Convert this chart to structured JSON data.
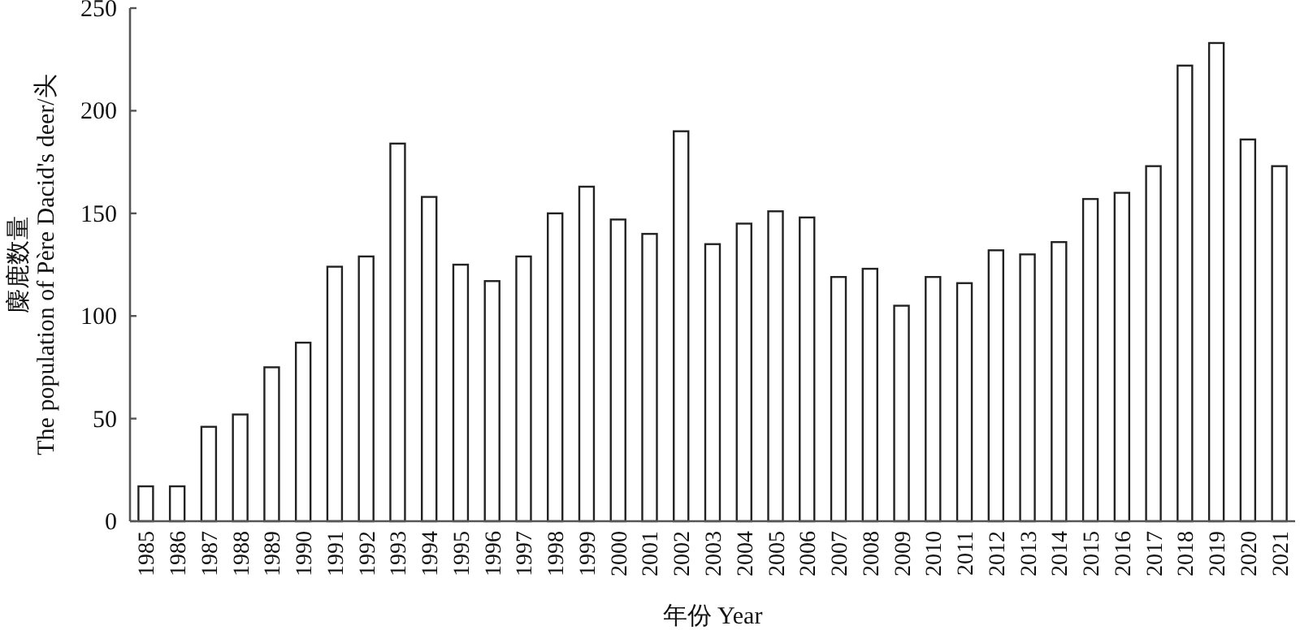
{
  "chart_data": {
    "type": "bar",
    "xlabel": "年份 Year",
    "ylabel": "麋鹿数量\nThe population of Père Dacid's deer/头",
    "categories": [
      "1985",
      "1986",
      "1987",
      "1988",
      "1989",
      "1990",
      "1991",
      "1992",
      "1993",
      "1994",
      "1995",
      "1996",
      "1997",
      "1998",
      "1999",
      "2000",
      "2001",
      "2002",
      "2003",
      "2004",
      "2005",
      "2006",
      "2007",
      "2008",
      "2009",
      "2010",
      "2011",
      "2012",
      "2013",
      "2014",
      "2015",
      "2016",
      "2017",
      "2018",
      "2019",
      "2020",
      "2021"
    ],
    "values": [
      17,
      17,
      46,
      52,
      75,
      87,
      124,
      129,
      184,
      158,
      125,
      117,
      129,
      150,
      163,
      147,
      140,
      190,
      135,
      145,
      151,
      148,
      119,
      123,
      105,
      119,
      116,
      132,
      130,
      136,
      157,
      160,
      173,
      222,
      233,
      186,
      173
    ],
    "color": "#ffffff",
    "ylim": [
      0,
      250
    ],
    "yticks": [
      0,
      50,
      100,
      150,
      200,
      250
    ]
  }
}
